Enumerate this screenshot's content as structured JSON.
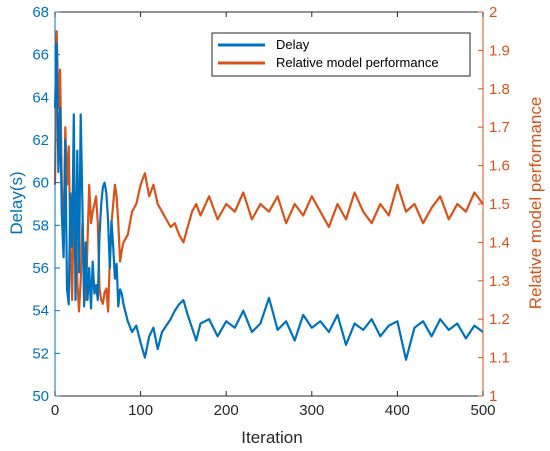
{
  "chart_data": {
    "type": "line",
    "xlabel": "Iteration",
    "ylabel_left": "Delay(s)",
    "ylabel_right": "Relative model performance",
    "xlim": [
      0,
      500
    ],
    "ylim_left": [
      50,
      68
    ],
    "ylim_right": [
      1,
      2
    ],
    "x_ticks": [
      "0",
      "100",
      "200",
      "300",
      "400",
      "500"
    ],
    "y_left_ticks": [
      "50",
      "52",
      "54",
      "56",
      "58",
      "60",
      "62",
      "64",
      "66",
      "68"
    ],
    "y_right_ticks": [
      "1",
      "1.1",
      "1.2",
      "1.3",
      "1.4",
      "1.5",
      "1.6",
      "1.7",
      "1.8",
      "1.9",
      "2"
    ],
    "grid": false,
    "legend_position": "top-right",
    "colors": {
      "left": "#0072BD",
      "right": "#D95319",
      "axis": "#262626"
    },
    "legend": [
      {
        "label": "Delay",
        "color": "#0072BD"
      },
      {
        "label": "Relative model performance",
        "color": "#D95319"
      }
    ],
    "series": [
      {
        "name": "Delay",
        "axis": "left",
        "color": "#0072BD",
        "x": [
          0,
          2,
          4,
          6,
          8,
          10,
          12,
          14,
          16,
          18,
          20,
          22,
          24,
          26,
          28,
          30,
          32,
          34,
          36,
          38,
          40,
          42,
          44,
          46,
          48,
          50,
          52,
          54,
          56,
          58,
          60,
          62,
          64,
          66,
          68,
          70,
          72,
          74,
          76,
          78,
          80,
          85,
          90,
          95,
          100,
          105,
          110,
          115,
          120,
          125,
          130,
          135,
          140,
          145,
          150,
          155,
          160,
          165,
          170,
          180,
          190,
          200,
          210,
          220,
          230,
          240,
          250,
          260,
          270,
          280,
          290,
          300,
          310,
          320,
          330,
          340,
          350,
          360,
          370,
          380,
          390,
          400,
          410,
          420,
          430,
          440,
          450,
          460,
          470,
          480,
          490,
          500
        ],
        "y": [
          63.5,
          66.5,
          60.5,
          63.5,
          58.5,
          56.5,
          62.0,
          55.0,
          54.3,
          59.5,
          57.0,
          63.2,
          54.5,
          61.5,
          55.8,
          63.2,
          59.0,
          54.2,
          57.2,
          54.5,
          56.0,
          54.1,
          56.3,
          54.8,
          55.2,
          54.5,
          57.5,
          59.0,
          59.8,
          60.0,
          59.5,
          58.2,
          56.0,
          58.2,
          57.0,
          55.5,
          56.2,
          54.2,
          55.0,
          54.8,
          54.3,
          53.5,
          53.0,
          53.3,
          52.5,
          51.8,
          52.8,
          53.2,
          52.2,
          53.0,
          53.3,
          53.6,
          54.0,
          54.3,
          54.5,
          53.8,
          53.2,
          52.6,
          53.4,
          53.6,
          52.8,
          53.5,
          53.2,
          54.0,
          53.0,
          53.4,
          54.6,
          53.1,
          53.5,
          52.6,
          53.8,
          53.2,
          53.5,
          53.0,
          53.8,
          52.4,
          53.4,
          53.1,
          53.6,
          52.8,
          53.3,
          53.5,
          51.7,
          53.2,
          53.5,
          52.8,
          53.6,
          53.1,
          53.4,
          52.7,
          53.3,
          53.0
        ]
      },
      {
        "name": "Relative model performance",
        "axis": "right",
        "color": "#D95319",
        "x": [
          0,
          2,
          4,
          6,
          8,
          10,
          12,
          14,
          16,
          18,
          20,
          22,
          24,
          26,
          28,
          30,
          32,
          34,
          36,
          38,
          40,
          42,
          44,
          46,
          48,
          50,
          52,
          54,
          56,
          58,
          60,
          62,
          64,
          66,
          68,
          70,
          72,
          74,
          76,
          78,
          80,
          85,
          90,
          95,
          100,
          105,
          110,
          115,
          120,
          125,
          130,
          135,
          140,
          145,
          150,
          155,
          160,
          165,
          170,
          180,
          190,
          200,
          210,
          220,
          230,
          240,
          250,
          260,
          270,
          280,
          290,
          300,
          310,
          320,
          330,
          340,
          350,
          360,
          370,
          380,
          390,
          400,
          410,
          420,
          430,
          440,
          450,
          460,
          470,
          480,
          490,
          500
        ],
        "y": [
          1.55,
          1.95,
          1.75,
          1.85,
          1.55,
          1.4,
          1.7,
          1.55,
          1.65,
          1.4,
          1.25,
          1.5,
          1.45,
          1.3,
          1.22,
          1.3,
          1.45,
          1.35,
          1.25,
          1.4,
          1.55,
          1.45,
          1.48,
          1.5,
          1.52,
          1.45,
          1.28,
          1.25,
          1.24,
          1.27,
          1.28,
          1.22,
          1.35,
          1.45,
          1.5,
          1.55,
          1.52,
          1.45,
          1.35,
          1.38,
          1.4,
          1.42,
          1.48,
          1.5,
          1.55,
          1.58,
          1.52,
          1.55,
          1.5,
          1.48,
          1.46,
          1.44,
          1.45,
          1.42,
          1.4,
          1.44,
          1.48,
          1.5,
          1.47,
          1.52,
          1.46,
          1.5,
          1.48,
          1.53,
          1.46,
          1.5,
          1.48,
          1.52,
          1.45,
          1.5,
          1.47,
          1.52,
          1.48,
          1.44,
          1.5,
          1.46,
          1.53,
          1.48,
          1.45,
          1.5,
          1.47,
          1.55,
          1.48,
          1.5,
          1.45,
          1.49,
          1.52,
          1.46,
          1.5,
          1.48,
          1.53,
          1.5
        ]
      }
    ]
  }
}
